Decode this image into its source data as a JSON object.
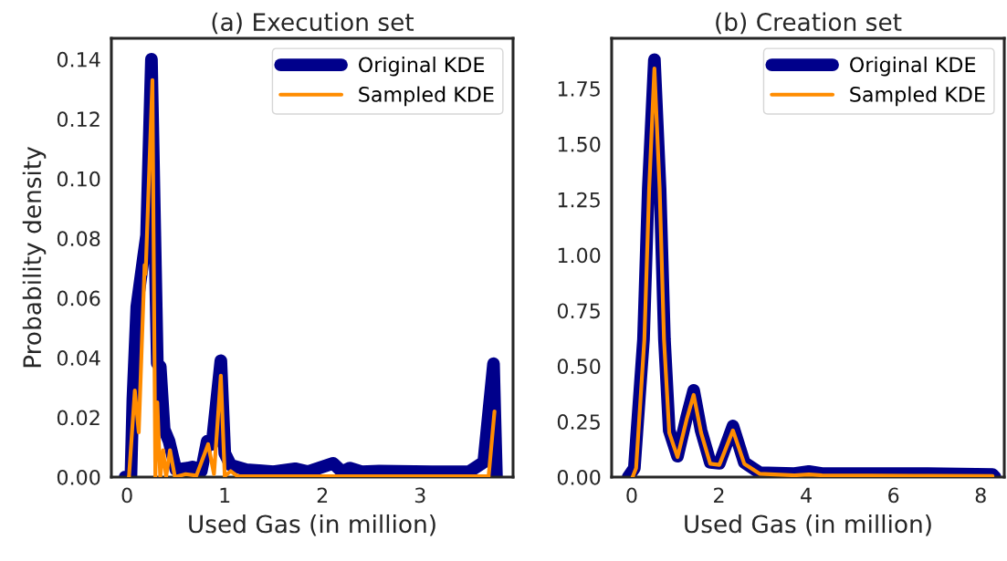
{
  "chart_data": [
    {
      "type": "line",
      "title": "(a) Execution set",
      "xlabel": "Used Gas (in million)",
      "ylabel": "Probability density",
      "legend": "top right",
      "xlim": [
        -0.16,
        3.95
      ],
      "xticks": [
        0,
        1,
        2,
        3
      ],
      "ylim": [
        0,
        0.147
      ],
      "yticks": [
        {
          "value": 0,
          "label": "0.00"
        },
        {
          "value": 0.02,
          "label": "0.02"
        },
        {
          "value": 0.04,
          "label": "0.04"
        },
        {
          "value": 0.06,
          "label": "0.06"
        },
        {
          "value": 0.08,
          "label": "0.08"
        },
        {
          "value": 0.1,
          "label": "0.10"
        },
        {
          "value": 0.12,
          "label": "0.12"
        },
        {
          "value": 0.14,
          "label": "0.14"
        }
      ],
      "series": [
        {
          "name": "Original KDE",
          "color": "#00008b",
          "x": [
            -0.02,
            0.04,
            0.06,
            0.1,
            0.17,
            0.2,
            0.25,
            0.31,
            0.34,
            0.38,
            0.43,
            0.5,
            0.62,
            0.67,
            0.76,
            0.82,
            0.87,
            0.96,
            1.0,
            1.06,
            1.22,
            1.5,
            1.72,
            1.85,
            2.11,
            2.2,
            2.28,
            2.4,
            2.58,
            3.12,
            3.5,
            3.65,
            3.75,
            3.78
          ],
          "values": [
            0,
            0,
            0.026,
            0.057,
            0.074,
            0.081,
            0.14,
            0.038,
            0.037,
            0.016,
            0.012,
            0.0025,
            0.003,
            0.0034,
            0.002,
            0.012,
            0.011,
            0.039,
            0.008,
            0.004,
            0.0025,
            0.0018,
            0.0028,
            0.0018,
            0.0046,
            0.0018,
            0.003,
            0.0018,
            0.002,
            0.0018,
            0.0018,
            0.005,
            0.038,
            0
          ]
        },
        {
          "name": "Sampled KDE",
          "color": "#ff8c00",
          "x": [
            0.02,
            0.08,
            0.12,
            0.18,
            0.19,
            0.26,
            0.29,
            0.31,
            0.34,
            0.37,
            0.4,
            0.44,
            0.49,
            0.6,
            0.71,
            0.83,
            0.89,
            0.96,
            1.0,
            1.06,
            1.13,
            2.0,
            3.0,
            3.7,
            3.76
          ],
          "values": [
            0,
            0.029,
            0.015,
            0.071,
            0.068,
            0.133,
            0,
            0.025,
            0,
            0.009,
            0,
            0.009,
            0,
            0.001,
            0.0005,
            0.011,
            0.001,
            0.034,
            0.0003,
            0.002,
            0.0003,
            0.0003,
            0.0003,
            0.0003,
            0.022
          ]
        }
      ]
    },
    {
      "type": "line",
      "title": "(b) Creation set",
      "xlabel": "Used Gas (in million)",
      "legend": "top right",
      "xlim": [
        -0.46,
        8.54
      ],
      "xticks": [
        0,
        2,
        4,
        6,
        8
      ],
      "ylim": [
        0,
        1.976
      ],
      "yticks": [
        {
          "value": 0,
          "label": "0.00"
        },
        {
          "value": 0.25,
          "label": "0.25"
        },
        {
          "value": 0.5,
          "label": "0.50"
        },
        {
          "value": 0.75,
          "label": "0.75"
        },
        {
          "value": 1.0,
          "label": "1.00"
        },
        {
          "value": 1.25,
          "label": "1.25"
        },
        {
          "value": 1.5,
          "label": "1.50"
        },
        {
          "value": 1.75,
          "label": "1.75"
        }
      ],
      "series": [
        {
          "name": "Original KDE",
          "color": "#00008b",
          "x": [
            -0.08,
            0.06,
            0.27,
            0.38,
            0.52,
            0.65,
            0.75,
            0.86,
            1.05,
            1.26,
            1.42,
            1.59,
            1.8,
            2.01,
            2.32,
            2.58,
            2.93,
            3.73,
            4.06,
            4.36,
            6.45,
            8.27,
            8.33
          ],
          "values": [
            0,
            0.04,
            0.62,
            1.3,
            1.88,
            1.3,
            0.62,
            0.21,
            0.094,
            0.27,
            0.39,
            0.21,
            0.066,
            0.062,
            0.23,
            0.066,
            0.02,
            0.016,
            0.025,
            0.016,
            0.016,
            0.012,
            0
          ]
        },
        {
          "name": "Sampled KDE",
          "color": "#ff8c00",
          "x": [
            0.02,
            0.1,
            0.29,
            0.4,
            0.52,
            0.64,
            0.74,
            0.86,
            1.05,
            1.26,
            1.42,
            1.59,
            1.8,
            2.01,
            2.32,
            2.58,
            2.93,
            3.73,
            4.06,
            4.36,
            6.45,
            8.27
          ],
          "values": [
            0,
            0.04,
            0.62,
            1.3,
            1.84,
            1.3,
            0.62,
            0.2,
            0.09,
            0.26,
            0.37,
            0.2,
            0.06,
            0.055,
            0.21,
            0.06,
            0.015,
            0.008,
            0.012,
            0.008,
            0.006,
            0.005
          ]
        }
      ]
    }
  ]
}
